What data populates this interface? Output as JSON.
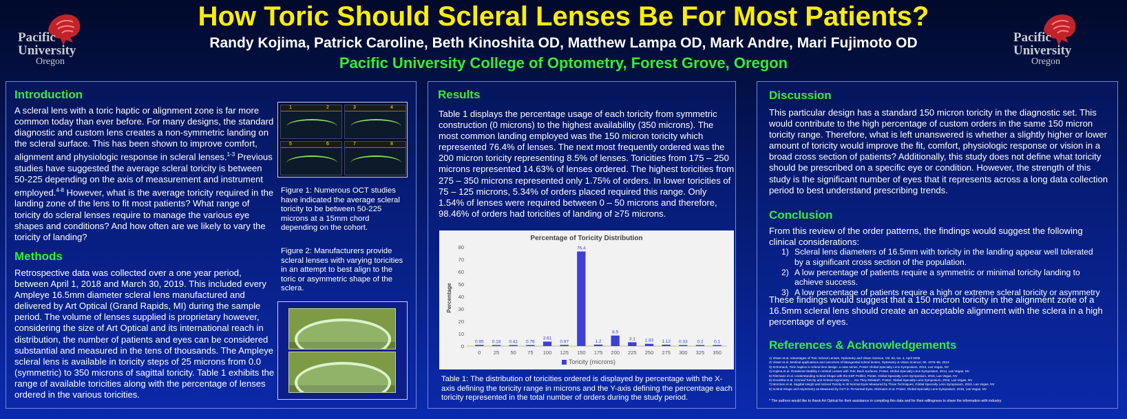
{
  "header": {
    "title": "How Toric Should Scleral Lenses Be For Most Patients?",
    "authors": "Randy Kojima, Patrick Caroline, Beth Kinoshita OD, Matthew Lampa OD, Mark Andre, Mari Fujimoto OD",
    "affiliation": "Pacific University College of Optometry, Forest Grove, Oregon",
    "logo": {
      "line1": "Pacific",
      "line2": "University",
      "line3": "Oregon",
      "icon": "griffin-logo-icon"
    }
  },
  "introduction": {
    "heading": "Introduction",
    "p1": "A scleral lens with a toric haptic or alignment zone is far more common today than ever before.  For many designs, the standard diagnostic and custom lens creates a non-symmetric landing on the scleral surface.  This has been shown to improve comfort, alignment and physiologic response in scleral lenses.",
    "sup1": "1-3",
    "p2": "  Previous studies have suggested the average scleral toricity is between 50-225 depending on the axis of measurement and instrument employed.",
    "sup2": "4-8",
    "p3": "  However, what is the average toricity required in the landing zone of the lens to fit most patients?  What range of toricity do scleral lenses require to manage the various eye shapes and conditions?  And how often are we likely to vary the toricity of landing?"
  },
  "figures": {
    "fig1_caption": "Figure 1: Numerous OCT studies have indicated the average scleral toricity to be between 50-225 microns at a 15mm chord depending on the cohort.",
    "fig1_numbers": [
      "1",
      "2",
      "3",
      "4",
      "5",
      "6",
      "7",
      "8"
    ],
    "fig2_caption": "Figure 2: Manufacturers provide scleral lenses with varying toricities in an attempt to best align to the toric or asymmetric shape of the sclera."
  },
  "methods": {
    "heading": "Methods",
    "text": "Retrospective data was collected over a one year period, between April 1, 2018 and March 30, 2019.  This included every Ampleye 16.5mm diameter scleral lens manufactured and delivered by Art Optical (Grand Rapids, MI) during the sample period.  The volume of lenses supplied is proprietary however, considering the size of Art Optical and its international reach in distribution, the number of patients and eyes can be considered substantial and measured in the tens of thousands.  The Ampleye scleral lens is available in toricity steps of 25 microns from 0.0 (symmetric) to 350 microns of sagittal toricity.  Table 1 exhibits the range of available toricities along with the percentage of lenses ordered in the various toricities."
  },
  "results": {
    "heading": "Results",
    "text": "Table 1 displays the percentage usage of each toricity from symmetric construction (0 microns) to the highest availability (350 microns).  The most common landing employed was the 150 micron toricity which represented 76.4% of lenses.  The next most frequently ordered was the 200 micron toricity representing 8.5% of lenses.  Toricities from 175 – 250 microns represented 14.63% of lenses ordered.  The highest toricities from 275 – 350 microns represented only 1.75% of orders.  In lower toricities of 75 – 125 microns, 5.34% of orders placed required this range.  Only 1.54% of lenses were required between 0 – 50 microns and therefore, 98.46% of orders had toricities of landing of ≥75 microns.",
    "table_caption": "Table 1: The distribution of toricities ordered is displayed by percentage with the X-axis defining the toricity range in microns and the Y-axis defining the percentage each toricity represented in the total number of orders during the study period."
  },
  "chart_data": {
    "type": "bar",
    "title": "Percentage of Toricity Distribution",
    "xlabel": "",
    "ylabel": "Percentage",
    "categories": [
      "0",
      "25",
      "50",
      "75",
      "100",
      "125",
      "150",
      "175",
      "200",
      "225",
      "250",
      "275",
      "300",
      "325",
      "350"
    ],
    "series": [
      {
        "name": "Toricity (microns)",
        "values": [
          0.95,
          0.18,
          0.41,
          0.76,
          3.61,
          0.97,
          76.4,
          1.2,
          8.5,
          3.1,
          1.83,
          1.12,
          0.33,
          0.2,
          0.1
        ]
      }
    ],
    "value_labels": [
      "0.95",
      "0.18",
      "0.41",
      "0.76",
      "3.61",
      "0.97",
      "76.4",
      "1.2",
      "8.5",
      "3.1",
      "1.83",
      "1.12",
      "0.33",
      "0.2",
      "0.1"
    ],
    "yticks": [
      "0",
      "10",
      "20",
      "30",
      "40",
      "50",
      "60",
      "70",
      "80"
    ],
    "ylim": [
      0,
      80
    ],
    "legend_position": "bottom",
    "grid": false,
    "bar_color": "#3f3fd8"
  },
  "discussion": {
    "heading": "Discussion",
    "text": "This particular design has a standard 150 micron toricity in the diagnostic set.  This would contribute to the high percentage of custom orders in the same 150 micron toricity range.  Therefore, what is left unanswered is whether a slightly higher or lower amount of toricity would improve the fit, comfort, physiologic response or vision in a broad cross section of patients?  Additionally, this study does not define what toricity should be prescribed on a specific eye or condition. However, the strength of this study is the significant number of eyes that it represents across a long data collection period to best understand prescribing trends."
  },
  "conclusion": {
    "heading": "Conclusion",
    "intro": "From this review of the order patterns, the findings would suggest the following clinical considerations:",
    "items": [
      {
        "n": "1)",
        "text": "Scleral lens diameters of 16.5mm with toricity in the landing appear well tolerated by a significant cross section of the population."
      },
      {
        "n": "2)",
        "text": "A low percentage of patients require a symmetric or minimal toricity landing to achieve success."
      },
      {
        "n": "3)",
        "text": "A low percentage of patients require a high or extreme scleral toricity or asymmetry"
      }
    ],
    "outro": "These findings would suggest that a 150 micron toricity in the alignment zone of a 16.5mm scleral lens should create an acceptable alignment with the sclera in a high percentage of eyes."
  },
  "references": {
    "heading": "References & Acknowledgements",
    "items": [
      "1) Visser et al. Advantages of Toric Scleral Lenses, Optometry and Vision Science, Vol. 83, No. 4, April 2006",
      "2) Visser et al. Medical applications and outcomes of bitangential scleral lenses, Optometry & Vision Science; 90, 1078–85, 2013",
      "3) Schornack, Toric haptics in scleral lens design: a case series, Poster Global Specialty Lens Symposium, 2013, Las Vegas, NV",
      "4) Kojima et al. Rotational Stability in Scleral Lenses with Toric Back Surfaces, Poster, Global Specialty Lens Symposium, 2014, Las Vegas, NV",
      "5) Ritzmann et al. Understanding Scleral Shape with the ESP Profiler, Poster, Global Specialty Lens Symposium, 2015, Las Vegas, NV",
      "6) Kinoshita et al. Corneal Toricity and Scleral Asymmetry…. Are They Related?, Poster, Global Specialty Lens Symposium, 2016, Las Vegas, NV",
      "7) Morrison et al. Sagittal Height and Scleral Toricity in 30 Normal Eyes Measured by Three Techniques, Global Specialty Lens Symposium, 2016, Las Vegas, NV",
      "8) Scleral Shape and Asymmetry as Measured by OCT in 78 Normal Eyes, Ritzmann et al. Poster, Global Specialty Lens Symposium, 2016, Las Vegas, NV"
    ],
    "ack": "* The authors would like to thank Art Optical for their assistance in compiling this data and for their willingness to share the information with industry."
  }
}
